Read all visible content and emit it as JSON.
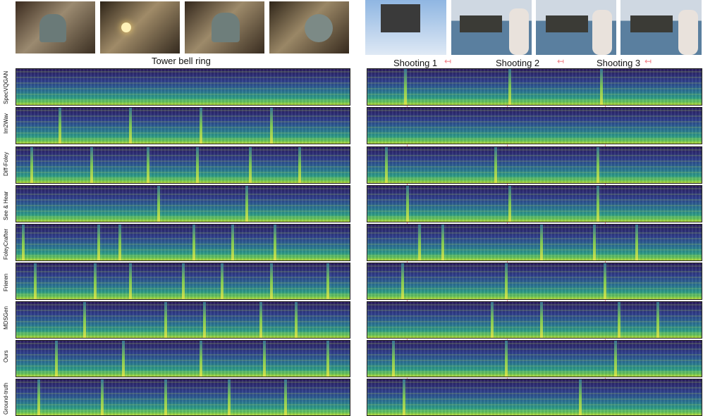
{
  "left_caption": "Tower bell ring",
  "right_captions": [
    "Shooting 1",
    "Shooting 2",
    "Shooting 3"
  ],
  "row_labels": [
    "SpecVQGAN",
    "Im2Wav",
    "Diff-Foley",
    "See & Hear",
    "FoleyCrafter",
    "Frieren",
    "MDSGen",
    "Ours",
    "Ground-truth"
  ],
  "arrow_glyph": "↤",
  "colors": {
    "dash": "#f07f8a",
    "spec_low": "#2b1d5e",
    "spec_high": "#d8e23a"
  }
}
